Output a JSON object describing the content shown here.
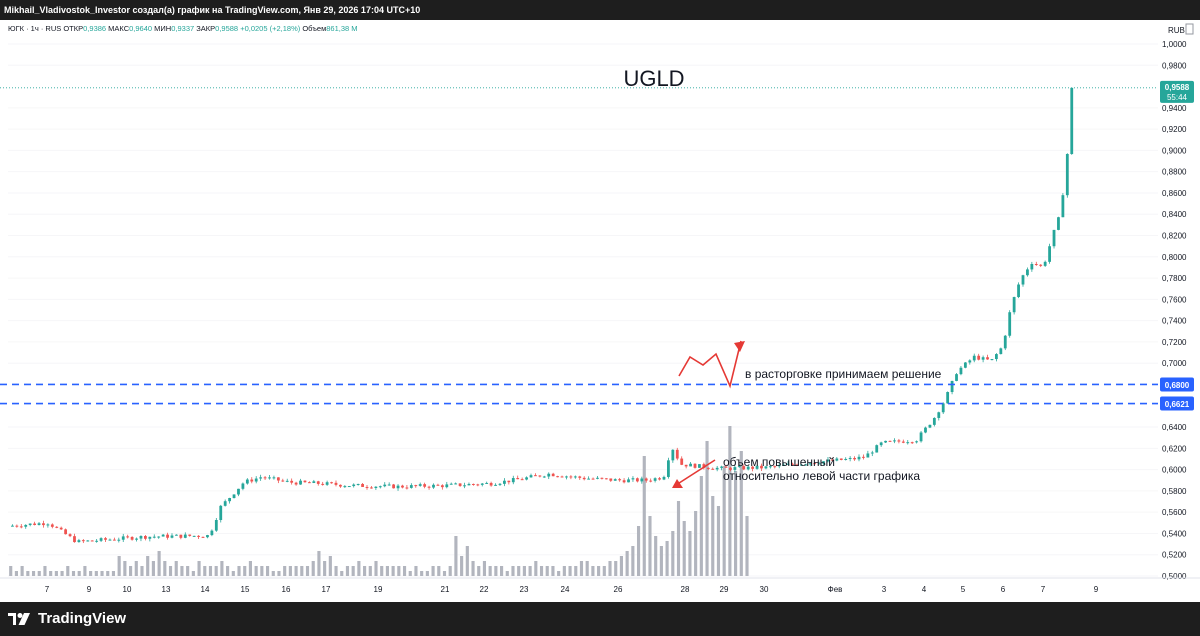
{
  "header": {
    "author_line": "Mikhail_Vladivostok_Investor создал(а) график на TradingView.com, Янв 29, 2026 17:04 UTC+10"
  },
  "legend": {
    "symbol": "ЮГК · 1ч · RUS",
    "open_label": "ОТКР",
    "open_value": "0,9386",
    "high_label": "МАКС",
    "high_value": "0,9640",
    "low_label": "МИН",
    "low_value": "0,9337",
    "close_label": "ЗАКР",
    "close_value": "0,9588",
    "change": "+0,0205 (+2,18%)",
    "volume_label": "Объем",
    "volume_value": "861,38 M"
  },
  "currency": "RUB",
  "footer": {
    "brand": "TradingView"
  },
  "colors": {
    "up": "#26a69a",
    "down": "#ef5350",
    "level_line": "#2962ff",
    "price_label_bg": "#26a69a",
    "volume_bar": "#b2b5be",
    "annotation_arrow": "#e53935",
    "background": "#ffffff",
    "chrome": "#1e1e1e"
  },
  "chart_data": {
    "type": "candlestick",
    "title": "UGLD",
    "ylim": [
      0.5,
      1.0
    ],
    "y_ticks": [
      "1,0000",
      "0,9800",
      "0,9400",
      "0,9200",
      "0,9000",
      "0,8800",
      "0,8600",
      "0,8400",
      "0,8200",
      "0,8000",
      "0,7800",
      "0,7600",
      "0,7400",
      "0,7200",
      "0,7000",
      "0,6400",
      "0,6200",
      "0,6000",
      "0,5800",
      "0,5600",
      "0,5400",
      "0,5200",
      "0,5000"
    ],
    "y_tick_values": [
      1.0,
      0.98,
      0.94,
      0.92,
      0.9,
      0.88,
      0.86,
      0.84,
      0.82,
      0.8,
      0.78,
      0.76,
      0.74,
      0.72,
      0.7,
      0.64,
      0.62,
      0.6,
      0.58,
      0.56,
      0.54,
      0.52,
      0.5
    ],
    "x_ticks": [
      "7",
      "9",
      "10",
      "13",
      "14",
      "15",
      "16",
      "17",
      "19",
      "21",
      "22",
      "23",
      "24",
      "26",
      "28",
      "29",
      "30",
      "Фев",
      "3",
      "4",
      "5",
      "6",
      "7",
      "9"
    ],
    "current_price": {
      "value": 0.9588,
      "label": "0,9588",
      "countdown": "55:44"
    },
    "levels": [
      {
        "value": 0.68,
        "label": "0,6800"
      },
      {
        "value": 0.6621,
        "label": "0,6621"
      }
    ],
    "price_path": [
      [
        0,
        0.547
      ],
      [
        0.035,
        0.55
      ],
      [
        0.06,
        0.532
      ],
      [
        0.12,
        0.537
      ],
      [
        0.175,
        0.538
      ],
      [
        0.185,
        0.565
      ],
      [
        0.205,
        0.588
      ],
      [
        0.22,
        0.593
      ],
      [
        0.245,
        0.588
      ],
      [
        0.27,
        0.587
      ],
      [
        0.3,
        0.585
      ],
      [
        0.34,
        0.584
      ],
      [
        0.38,
        0.585
      ],
      [
        0.42,
        0.587
      ],
      [
        0.445,
        0.591
      ],
      [
        0.47,
        0.596
      ],
      [
        0.5,
        0.592
      ],
      [
        0.53,
        0.59
      ],
      [
        0.555,
        0.59
      ],
      [
        0.57,
        0.593
      ],
      [
        0.577,
        0.622
      ],
      [
        0.585,
        0.605
      ],
      [
        0.62,
        0.601
      ],
      [
        0.66,
        0.602
      ],
      [
        0.7,
        0.607
      ],
      [
        0.735,
        0.61
      ],
      [
        0.745,
        0.612
      ],
      [
        0.76,
        0.625
      ],
      [
        0.79,
        0.628
      ],
      [
        0.805,
        0.648
      ],
      [
        0.815,
        0.666
      ],
      [
        0.825,
        0.692
      ],
      [
        0.84,
        0.706
      ],
      [
        0.855,
        0.702
      ],
      [
        0.865,
        0.716
      ],
      [
        0.872,
        0.752
      ],
      [
        0.88,
        0.778
      ],
      [
        0.89,
        0.795
      ],
      [
        0.9,
        0.79
      ],
      [
        0.91,
        0.825
      ],
      [
        0.915,
        0.84
      ],
      [
        0.918,
        0.866
      ],
      [
        0.92,
        0.87
      ],
      [
        0.923,
        0.94
      ],
      [
        0.925,
        0.9588
      ]
    ],
    "volume": [
      2,
      1,
      2,
      1,
      1,
      1,
      2,
      1,
      1,
      1,
      2,
      1,
      1,
      2,
      1,
      1,
      1,
      1,
      1,
      4,
      3,
      2,
      3,
      2,
      4,
      3,
      5,
      3,
      2,
      3,
      2,
      2,
      1,
      3,
      2,
      2,
      2,
      3,
      2,
      1,
      2,
      2,
      3,
      2,
      2,
      2,
      1,
      1,
      2,
      2,
      2,
      2,
      2,
      3,
      5,
      3,
      4,
      2,
      1,
      2,
      2,
      3,
      2,
      2,
      3,
      2,
      2,
      2,
      2,
      2,
      1,
      2,
      1,
      1,
      2,
      2,
      1,
      2,
      8,
      4,
      6,
      3,
      2,
      3,
      2,
      2,
      2,
      1,
      2,
      2,
      2,
      2,
      3,
      2,
      2,
      2,
      1,
      2,
      2,
      2,
      3,
      3,
      2,
      2,
      2,
      3,
      3,
      4,
      5,
      6,
      10,
      24,
      12,
      8,
      6,
      7,
      9,
      15,
      11,
      9,
      13,
      20,
      27,
      16,
      14,
      22,
      30,
      21,
      25,
      12
    ],
    "annotations": [
      {
        "text": "UGLD"
      },
      {
        "text": "в расторговке принимаем решение"
      },
      {
        "text": "объем повышенный"
      },
      {
        "text": "относительно левой части графика"
      }
    ]
  }
}
